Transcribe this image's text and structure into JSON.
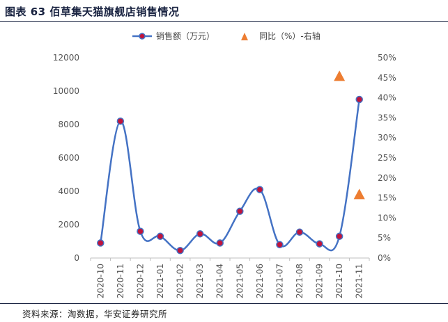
{
  "title": "图表 63 佰草集天猫旗舰店销售情况",
  "source": "资料来源：淘数据，华安证券研究所",
  "colors": {
    "line": "#4472c4",
    "marker_fill": "#c0143c",
    "triangle": "#ed7d31",
    "title": "#17213f"
  },
  "chart_data": {
    "type": "line",
    "categories": [
      "2020-10",
      "2020-11",
      "2020-12",
      "2021-01",
      "2021-02",
      "2021-03",
      "2021-04",
      "2021-05",
      "2021-06",
      "2021-07",
      "2021-08",
      "2021-09",
      "2021-10",
      "2021-11"
    ],
    "series": [
      {
        "name": "销售额（万元）",
        "axis": "left",
        "style": "smooth-line-with-circles",
        "values": [
          900,
          8200,
          1600,
          1300,
          450,
          1450,
          900,
          2800,
          4100,
          800,
          1550,
          850,
          1300,
          9500
        ]
      },
      {
        "name": "同比（%）-右轴",
        "axis": "right",
        "style": "triangle-markers",
        "values": [
          null,
          null,
          null,
          null,
          null,
          null,
          null,
          null,
          null,
          null,
          null,
          null,
          45.5,
          16.0
        ]
      }
    ],
    "y_left": {
      "min": 0,
      "max": 12000,
      "ticks": [
        "0",
        "2000",
        "4000",
        "6000",
        "8000",
        "10000",
        "12000"
      ]
    },
    "y_right": {
      "min": 0,
      "max": 50,
      "ticks": [
        "0%",
        "5%",
        "10%",
        "15%",
        "20%",
        "25%",
        "30%",
        "35%",
        "40%",
        "45%",
        "50%"
      ]
    },
    "legend_position": "top",
    "grid": false
  }
}
